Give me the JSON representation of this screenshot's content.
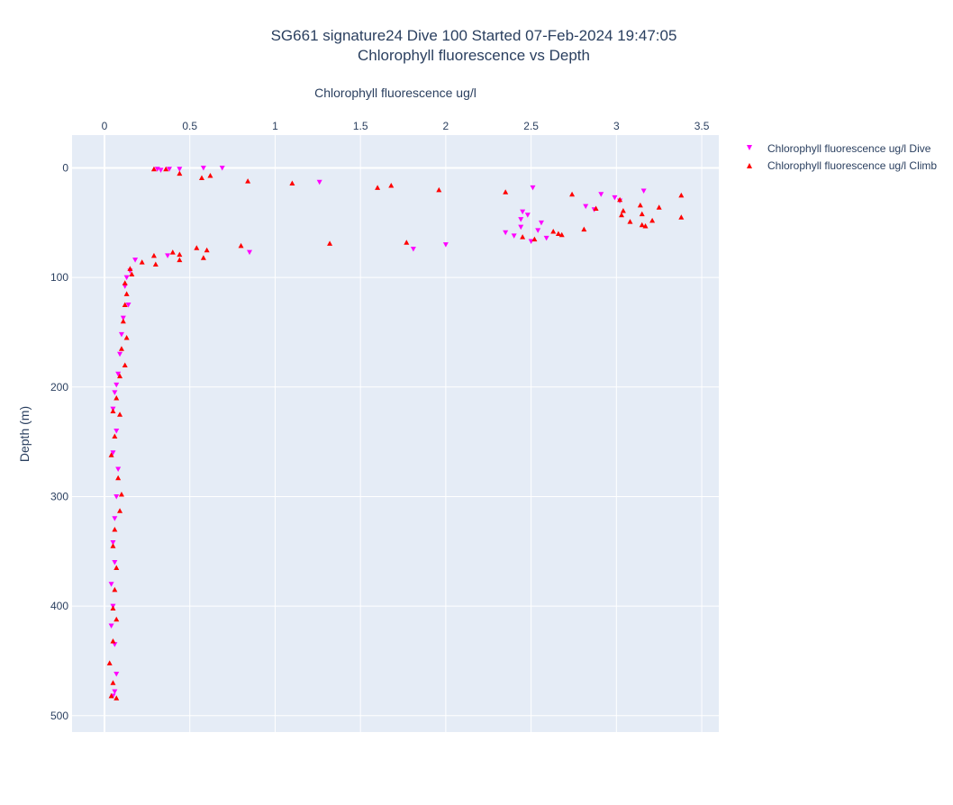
{
  "chart_data": {
    "type": "scatter",
    "title_lines": [
      "SG661 signature24 Dive 100 Started 07-Feb-2024 19:47:05",
      "Chlorophyll fluorescence vs Depth"
    ],
    "xlabel": "Chlorophyll fluorescence ug/l",
    "ylabel": "Depth (m)",
    "xlim": [
      -0.19,
      3.6
    ],
    "ylim": [
      515,
      -30
    ],
    "x_axis_position": "top",
    "y_reversed": true,
    "grid": true,
    "xticks": [
      0,
      0.5,
      1,
      1.5,
      2,
      2.5,
      3,
      3.5
    ],
    "xtick_labels": [
      "0",
      "0.5",
      "1",
      "1.5",
      "2",
      "2.5",
      "3",
      "3.5"
    ],
    "yticks": [
      0,
      100,
      200,
      300,
      400,
      500
    ],
    "ytick_labels": [
      "0",
      "100",
      "200",
      "300",
      "400",
      "500"
    ],
    "legend_position": "top-right",
    "series": [
      {
        "name": "Chlorophyll fluorescence ug/l Dive",
        "marker": "triangle-down",
        "color": "#ff00ff",
        "points": [
          [
            0.31,
            1
          ],
          [
            0.33,
            2
          ],
          [
            0.38,
            1
          ],
          [
            0.44,
            1
          ],
          [
            0.58,
            0
          ],
          [
            0.69,
            0
          ],
          [
            1.26,
            13
          ],
          [
            2.51,
            18
          ],
          [
            2.91,
            24
          ],
          [
            3.16,
            21
          ],
          [
            2.99,
            27
          ],
          [
            3.02,
            30
          ],
          [
            2.82,
            35
          ],
          [
            2.87,
            38
          ],
          [
            2.45,
            40
          ],
          [
            2.48,
            43
          ],
          [
            2.44,
            47
          ],
          [
            2.56,
            50
          ],
          [
            2.44,
            54
          ],
          [
            2.54,
            57
          ],
          [
            2.35,
            59
          ],
          [
            2.4,
            62
          ],
          [
            2.59,
            64
          ],
          [
            2.5,
            67
          ],
          [
            1.81,
            74
          ],
          [
            2.0,
            70
          ],
          [
            0.85,
            77
          ],
          [
            0.37,
            80
          ],
          [
            0.18,
            84
          ],
          [
            0.15,
            94
          ],
          [
            0.13,
            100
          ],
          [
            0.12,
            108
          ],
          [
            0.14,
            125
          ],
          [
            0.11,
            137
          ],
          [
            0.1,
            152
          ],
          [
            0.09,
            170
          ],
          [
            0.08,
            188
          ],
          [
            0.07,
            198
          ],
          [
            0.06,
            205
          ],
          [
            0.05,
            220
          ],
          [
            0.07,
            240
          ],
          [
            0.05,
            260
          ],
          [
            0.08,
            275
          ],
          [
            0.07,
            300
          ],
          [
            0.06,
            320
          ],
          [
            0.05,
            342
          ],
          [
            0.06,
            360
          ],
          [
            0.04,
            380
          ],
          [
            0.05,
            400
          ],
          [
            0.04,
            418
          ],
          [
            0.06,
            435
          ],
          [
            0.07,
            462
          ],
          [
            0.06,
            478
          ],
          [
            0.05,
            482
          ]
        ]
      },
      {
        "name": "Chlorophyll fluorescence ug/l Climb",
        "marker": "triangle-up",
        "color": "#ff0000",
        "points": [
          [
            0.29,
            1
          ],
          [
            0.36,
            1
          ],
          [
            0.44,
            5
          ],
          [
            0.57,
            9
          ],
          [
            0.62,
            7
          ],
          [
            0.84,
            12
          ],
          [
            1.1,
            14
          ],
          [
            1.6,
            18
          ],
          [
            1.68,
            16
          ],
          [
            1.96,
            20
          ],
          [
            2.35,
            22
          ],
          [
            2.74,
            24
          ],
          [
            3.38,
            25
          ],
          [
            3.02,
            29
          ],
          [
            3.14,
            34
          ],
          [
            3.25,
            36
          ],
          [
            2.88,
            37
          ],
          [
            3.04,
            39
          ],
          [
            3.03,
            43
          ],
          [
            3.15,
            42
          ],
          [
            3.38,
            45
          ],
          [
            3.21,
            48
          ],
          [
            3.08,
            49
          ],
          [
            3.15,
            52
          ],
          [
            3.17,
            53
          ],
          [
            2.81,
            56
          ],
          [
            2.63,
            58
          ],
          [
            2.66,
            60
          ],
          [
            2.68,
            61
          ],
          [
            2.52,
            65
          ],
          [
            2.45,
            63
          ],
          [
            1.32,
            69
          ],
          [
            1.77,
            68
          ],
          [
            0.8,
            71
          ],
          [
            0.54,
            73
          ],
          [
            0.6,
            75
          ],
          [
            0.4,
            77
          ],
          [
            0.29,
            80
          ],
          [
            0.44,
            79
          ],
          [
            0.58,
            82
          ],
          [
            0.44,
            84
          ],
          [
            0.22,
            86
          ],
          [
            0.3,
            88
          ],
          [
            0.15,
            92
          ],
          [
            0.16,
            97
          ],
          [
            0.12,
            105
          ],
          [
            0.13,
            115
          ],
          [
            0.12,
            125
          ],
          [
            0.11,
            140
          ],
          [
            0.13,
            155
          ],
          [
            0.1,
            165
          ],
          [
            0.12,
            180
          ],
          [
            0.09,
            190
          ],
          [
            0.07,
            210
          ],
          [
            0.05,
            222
          ],
          [
            0.09,
            225
          ],
          [
            0.06,
            245
          ],
          [
            0.04,
            262
          ],
          [
            0.08,
            283
          ],
          [
            0.1,
            298
          ],
          [
            0.09,
            313
          ],
          [
            0.06,
            330
          ],
          [
            0.05,
            345
          ],
          [
            0.07,
            365
          ],
          [
            0.06,
            385
          ],
          [
            0.05,
            402
          ],
          [
            0.07,
            412
          ],
          [
            0.05,
            432
          ],
          [
            0.03,
            452
          ],
          [
            0.05,
            470
          ],
          [
            0.04,
            482
          ],
          [
            0.07,
            484
          ]
        ]
      }
    ]
  }
}
